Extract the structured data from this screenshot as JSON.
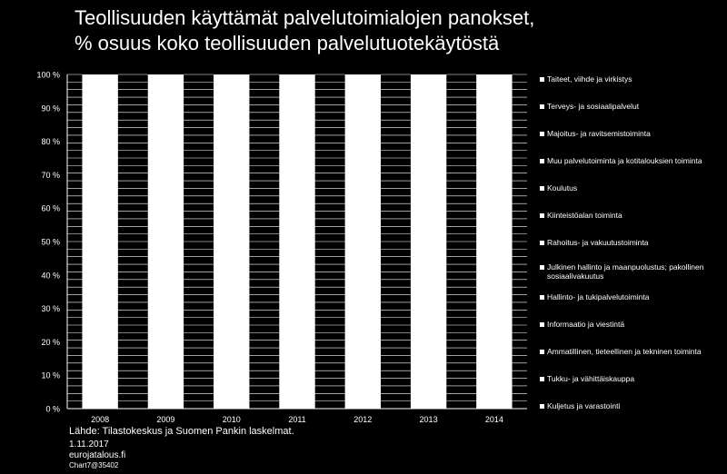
{
  "title_lines": [
    "Teollisuuden käyttämät palvelutoimialojen panokset,",
    "% osuus koko teollisuuden palvelutuotekäytöstä"
  ],
  "source": "Lähde: Tilastokeskus ja Suomen Pankin laskelmat.",
  "date": "1.11.2017",
  "site": "eurojatalous.fi",
  "chart_code": "Chart7@35402",
  "colors": {
    "background": "#000000",
    "bars": "#ffffff",
    "separator": "#000000",
    "axis": "#ffffff"
  },
  "chart_data": {
    "type": "bar",
    "stacked": true,
    "percent_stacked": true,
    "categories": [
      "2008",
      "2009",
      "2010",
      "2011",
      "2012",
      "2013",
      "2014"
    ],
    "y_ticks": [
      "0 %",
      "10 %",
      "20 %",
      "30 %",
      "40 %",
      "50 %",
      "60 %",
      "70 %",
      "80 %",
      "90 %",
      "100 %"
    ],
    "ylim": [
      0,
      100
    ],
    "legend_position": "right",
    "series_note_legend_order_top_to_bottom": true,
    "series": [
      {
        "name": "Taiteet, viihde ja virkistys"
      },
      {
        "name": "Terveys- ja sosiaalipalvelut"
      },
      {
        "name": "Majoitus- ja ravitsemistoiminta"
      },
      {
        "name": "Muu palvelutoiminta ja kotitalouksien toiminta"
      },
      {
        "name": "Koulutus"
      },
      {
        "name": "Kiinteistöalan toiminta"
      },
      {
        "name": "Rahoitus- ja vakuutustoiminta"
      },
      {
        "name": "Julkinen hallinto ja maanpuolustus; pakollinen sosiaalivakuutus"
      },
      {
        "name": "Hallinto- ja tukipalvelutoiminta"
      },
      {
        "name": "Informaatio ja viestintä"
      },
      {
        "name": "Ammatillinen, tieteellinen ja tekninen toiminta"
      },
      {
        "name": "Tukku- ja vähittäiskauppa"
      },
      {
        "name": "Kuljetus ja varastointi"
      }
    ],
    "total_per_category": [
      100,
      100,
      100,
      100,
      100,
      100,
      100
    ]
  }
}
